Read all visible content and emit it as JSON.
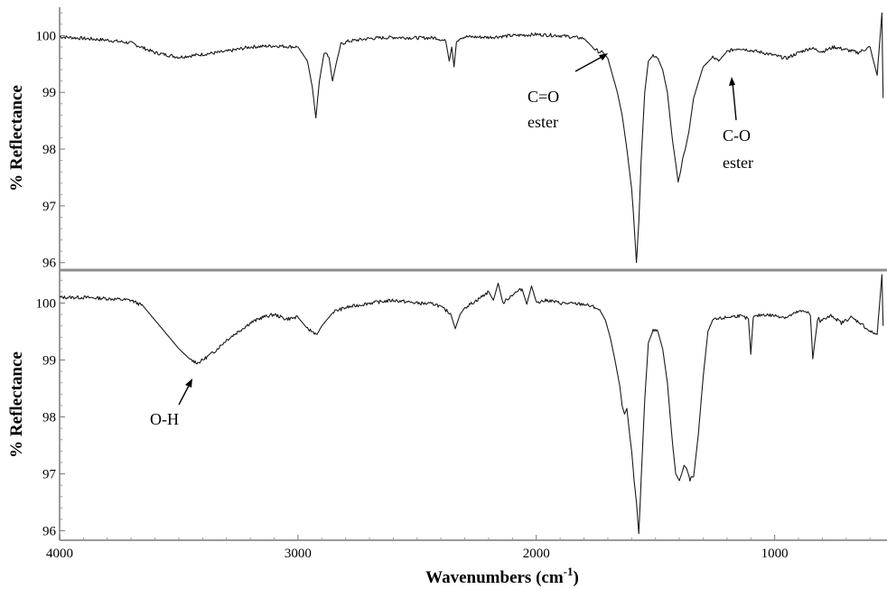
{
  "chart_data": [
    {
      "type": "line",
      "panel": "top",
      "xlabel": "",
      "ylabel": "% Reflectance",
      "xlim": [
        4000,
        540
      ],
      "ylim": [
        95.9,
        100.5
      ],
      "yticks": [
        "96",
        "97",
        "98",
        "99",
        "100"
      ],
      "series": [
        {
          "x": [
            4000,
            3900,
            3800,
            3700,
            3600,
            3500,
            3400,
            3300,
            3200,
            3100,
            3000,
            2960,
            2940,
            2925,
            2910,
            2890,
            2870,
            2855,
            2840,
            2820,
            2790,
            2700,
            2600,
            2500,
            2420,
            2380,
            2365,
            2355,
            2345,
            2335,
            2320,
            2300,
            2200,
            2100,
            2000,
            1900,
            1800,
            1760,
            1740,
            1720,
            1700,
            1680,
            1660,
            1640,
            1620,
            1600,
            1590,
            1580,
            1570,
            1560,
            1545,
            1530,
            1510,
            1490,
            1470,
            1450,
            1430,
            1415,
            1405,
            1395,
            1385,
            1375,
            1360,
            1340,
            1300,
            1260,
            1235,
            1200,
            1150,
            1100,
            1050,
            1000,
            950,
            900,
            850,
            800,
            750,
            700,
            650,
            600,
            570,
            550,
            545
          ],
          "y": [
            99.98,
            99.95,
            99.92,
            99.87,
            99.7,
            99.62,
            99.67,
            99.72,
            99.8,
            99.82,
            99.8,
            99.55,
            99.1,
            98.55,
            99.2,
            99.7,
            99.62,
            99.2,
            99.5,
            99.85,
            99.9,
            99.95,
            99.97,
            99.96,
            99.96,
            99.9,
            99.55,
            99.8,
            99.45,
            99.9,
            99.96,
            99.98,
            99.97,
            100.0,
            100.02,
            100.0,
            99.95,
            99.78,
            99.72,
            99.7,
            99.6,
            99.3,
            99.0,
            98.6,
            98.0,
            97.3,
            96.7,
            96.0,
            96.7,
            97.8,
            99.0,
            99.55,
            99.65,
            99.6,
            99.4,
            99.0,
            98.2,
            97.75,
            97.42,
            97.6,
            97.85,
            98.0,
            98.3,
            98.9,
            99.45,
            99.62,
            99.55,
            99.72,
            99.78,
            99.74,
            99.7,
            99.65,
            99.6,
            99.7,
            99.78,
            99.72,
            99.8,
            99.75,
            99.7,
            99.8,
            99.3,
            100.4,
            98.9
          ]
        }
      ],
      "annotations": [
        {
          "text": [
            "C=O",
            "ester"
          ],
          "x": 1740,
          "y": 99.72
        },
        {
          "text": [
            "C-O",
            "ester"
          ],
          "x": 1235,
          "y": 99.55
        }
      ]
    },
    {
      "type": "line",
      "panel": "bottom",
      "xlabel": "Wavenumbers (cm-1)",
      "ylabel": "% Reflectance",
      "xlim": [
        4000,
        540
      ],
      "ylim": [
        95.85,
        100.5
      ],
      "xticks": [
        "4000",
        "3000",
        "2000",
        "1000"
      ],
      "yticks": [
        "96",
        "97",
        "98",
        "99",
        "100"
      ],
      "series": [
        {
          "x": [
            4000,
            3900,
            3800,
            3700,
            3650,
            3600,
            3550,
            3500,
            3450,
            3420,
            3400,
            3350,
            3300,
            3250,
            3200,
            3150,
            3100,
            3050,
            3000,
            2960,
            2920,
            2900,
            2850,
            2800,
            2700,
            2600,
            2500,
            2420,
            2360,
            2340,
            2320,
            2300,
            2250,
            2200,
            2180,
            2160,
            2140,
            2100,
            2060,
            2040,
            2020,
            2000,
            1950,
            1900,
            1800,
            1750,
            1730,
            1710,
            1690,
            1670,
            1650,
            1640,
            1630,
            1620,
            1610,
            1600,
            1590,
            1580,
            1570,
            1560,
            1545,
            1530,
            1510,
            1490,
            1470,
            1450,
            1430,
            1415,
            1400,
            1390,
            1380,
            1370,
            1355,
            1340,
            1320,
            1300,
            1280,
            1260,
            1200,
            1150,
            1110,
            1100,
            1090,
            1050,
            1000,
            950,
            900,
            860,
            850,
            840,
            820,
            815,
            810,
            800,
            760,
            720,
            680,
            640,
            600,
            570,
            550,
            545
          ],
          "y": [
            100.1,
            100.1,
            100.08,
            100.05,
            99.95,
            99.7,
            99.45,
            99.2,
            99.0,
            98.95,
            99.0,
            99.15,
            99.35,
            99.5,
            99.65,
            99.75,
            99.8,
            99.72,
            99.75,
            99.55,
            99.45,
            99.6,
            99.85,
            99.92,
            100.0,
            100.05,
            100.0,
            99.98,
            99.82,
            99.55,
            99.8,
            99.92,
            100.05,
            100.2,
            100.05,
            100.35,
            100.0,
            100.15,
            100.25,
            99.98,
            100.3,
            100.02,
            100.05,
            100.0,
            99.98,
            99.92,
            99.85,
            99.7,
            99.4,
            99.0,
            98.55,
            98.2,
            98.05,
            98.15,
            97.75,
            97.4,
            96.9,
            96.5,
            95.95,
            96.9,
            98.3,
            99.3,
            99.52,
            99.5,
            99.2,
            98.6,
            97.6,
            97.0,
            96.88,
            97.0,
            97.15,
            97.1,
            96.9,
            96.95,
            97.7,
            98.7,
            99.5,
            99.7,
            99.75,
            99.78,
            99.72,
            99.1,
            99.75,
            99.8,
            99.78,
            99.75,
            99.85,
            99.85,
            99.78,
            99.02,
            99.7,
            99.75,
            99.68,
            99.7,
            99.78,
            99.65,
            99.75,
            99.65,
            99.5,
            99.45,
            100.5,
            99.6
          ]
        }
      ],
      "annotations": [
        {
          "text": [
            "O-H"
          ],
          "x": 3440,
          "y": 98.95
        }
      ]
    }
  ],
  "labels": {
    "ylabel_top": "% Reflectance",
    "ylabel_bottom": "% Reflectance",
    "xlabel_main": "Wavenumbers (cm",
    "xlabel_sup": "-1",
    "xlabel_close": ")",
    "top_annot_1_line1": "C=O",
    "top_annot_1_line2": "ester",
    "top_annot_2_line1": "C-O",
    "top_annot_2_line2": "ester",
    "bottom_annot_1": "O-H"
  }
}
